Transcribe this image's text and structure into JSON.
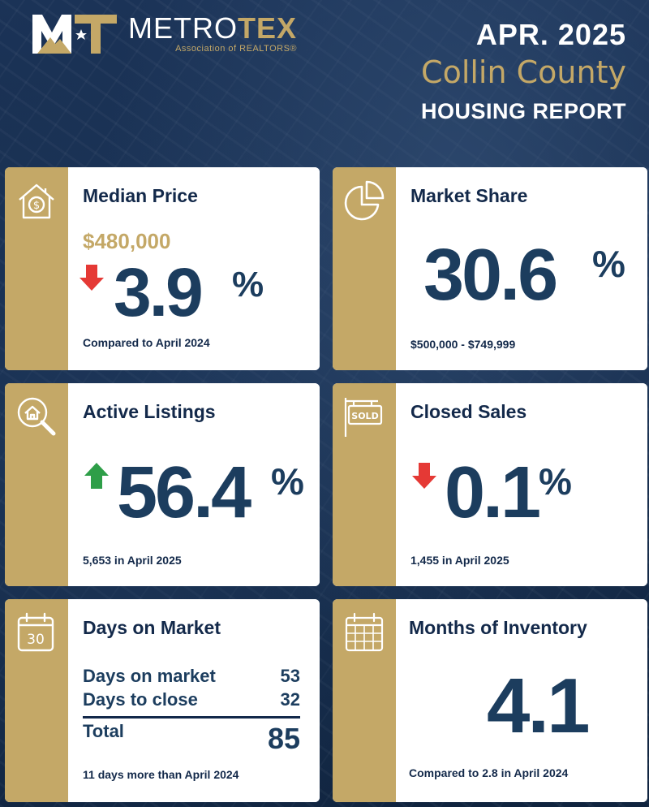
{
  "header": {
    "logo": {
      "name_light": "METRO",
      "name_bold": "TEX",
      "sub": "Association of REALTORS®"
    },
    "date": "APR. 2025",
    "county": "Collin County",
    "report": "HOUSING REPORT"
  },
  "cards": {
    "median_price": {
      "title": "Median Price",
      "price": "$480,000",
      "change_value": "3.9",
      "change_unit": "%",
      "direction": "down",
      "footnote": "Compared to April 2024",
      "icon": "house-dollar-icon"
    },
    "market_share": {
      "title": "Market Share",
      "value": "30.6",
      "unit": "%",
      "footnote": "$500,000 - $749,999",
      "icon": "pie-chart-icon"
    },
    "active_listings": {
      "title": "Active Listings",
      "change_value": "56.4",
      "change_unit": "%",
      "direction": "up",
      "footnote": "5,653 in April 2025",
      "icon": "house-search-icon"
    },
    "closed_sales": {
      "title": "Closed Sales",
      "change_value": "0.1",
      "change_unit": "%",
      "direction": "down",
      "footnote": "1,455 in April 2025",
      "icon": "sold-sign-icon"
    },
    "days_on_market": {
      "title": "Days on Market",
      "rows": [
        {
          "label": "Days on market",
          "value": "53"
        },
        {
          "label": "Days to close",
          "value": "32"
        }
      ],
      "total_label": "Total",
      "total_value": "85",
      "footnote": "11 days more than April 2024",
      "icon": "calendar-30-icon",
      "icon_text": "30"
    },
    "months_inventory": {
      "title": "Months of Inventory",
      "value": "4.1",
      "footnote": "Compared to 2.8 in April 2024",
      "icon": "calendar-grid-icon"
    }
  },
  "colors": {
    "navy": "#13294a",
    "gold": "#c4a867",
    "number": "#1c3d5e",
    "arrow_down": "#e53935",
    "arrow_up": "#2e9e48"
  }
}
